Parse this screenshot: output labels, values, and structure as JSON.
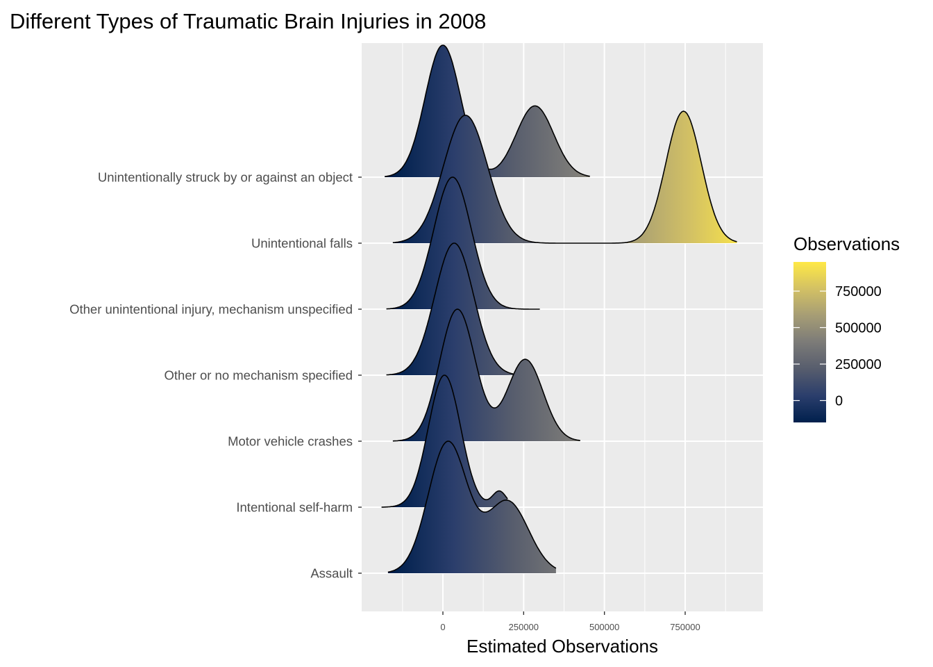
{
  "chart_data": {
    "type": "ridgeline",
    "title": "Different Types of Traumatic Brain Injuries in 2008",
    "xlabel": "Estimated Observations",
    "ylabel": "",
    "x_ticks": [
      0,
      250000,
      500000,
      750000
    ],
    "x_tick_labels": [
      "0",
      "250000",
      "500000",
      "750000"
    ],
    "xlim": [
      -250000,
      990000
    ],
    "grid": true,
    "legend": {
      "title": "Observations",
      "position": "right",
      "type": "colorbar",
      "ticks": [
        0,
        250000,
        500000,
        750000
      ],
      "tick_labels": [
        "0",
        "250000",
        "500000",
        "750000"
      ],
      "range": [
        -150000,
        950000
      ]
    },
    "color_scale": {
      "name": "cividis",
      "stops": [
        "#00204d",
        "#2b3e6c",
        "#575d6d",
        "#7c7b78",
        "#a69d75",
        "#d3c164",
        "#ffe945"
      ]
    },
    "categories": [
      "Assault",
      "Intentional self-harm",
      "Motor vehicle crashes",
      "Other or no mechanism specified",
      "Other unintentional injury, mechanism unspecified",
      "Unintentional falls",
      "Unintentionally struck by or against an object"
    ],
    "series": [
      {
        "components": [
          {
            "mean": 15000,
            "sd": 60000,
            "weight": 1.0
          },
          {
            "mean": 200000,
            "sd": 65000,
            "weight": 0.55
          }
        ]
      },
      {
        "components": [
          {
            "mean": 5000,
            "sd": 50000,
            "weight": 1.0
          },
          {
            "mean": 175000,
            "sd": 22000,
            "weight": 0.12
          }
        ]
      },
      {
        "components": [
          {
            "mean": 45000,
            "sd": 55000,
            "weight": 1.0
          },
          {
            "mean": 255000,
            "sd": 55000,
            "weight": 0.62
          }
        ]
      },
      {
        "components": [
          {
            "mean": 35000,
            "sd": 60000,
            "weight": 1.0
          }
        ]
      },
      {
        "components": [
          {
            "mean": 30000,
            "sd": 58000,
            "weight": 1.0
          }
        ]
      },
      {
        "components": [
          {
            "mean": 70000,
            "sd": 68000,
            "weight": 0.64
          },
          {
            "mean": 745000,
            "sd": 55000,
            "weight": 0.66
          }
        ]
      },
      {
        "components": [
          {
            "mean": 0,
            "sd": 55000,
            "weight": 1.0
          },
          {
            "mean": 285000,
            "sd": 58000,
            "weight": 0.54
          }
        ]
      }
    ],
    "density_range": [
      [
        -170000,
        350000
      ],
      [
        -190000,
        200000
      ],
      [
        -155000,
        425000
      ],
      [
        -175000,
        270000
      ],
      [
        -175000,
        300000
      ],
      [
        -155000,
        910000
      ],
      [
        -180000,
        455000
      ]
    ]
  }
}
